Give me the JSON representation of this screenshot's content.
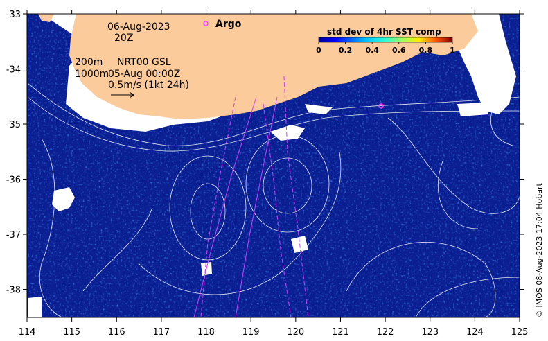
{
  "map": {
    "date": "06-Aug-2023",
    "time": "20Z",
    "depth_200": "200m",
    "depth_1000": "1000m",
    "product": "NRT00 GSL",
    "product_time": "05-Aug 00:00Z",
    "vector_scale": "0.5m/s (1kt 24h)",
    "argo_label": "Argo",
    "credit": "© IMOS 08-Aug-2023 17:04 Hobart",
    "x_ticks": [
      "114",
      "115",
      "116",
      "117",
      "118",
      "119",
      "120",
      "121",
      "122",
      "123",
      "124",
      "125"
    ],
    "y_ticks": [
      "-33",
      "-34",
      "-35",
      "-36",
      "-37",
      "-38"
    ],
    "land_color": "#fbcb9b",
    "ocean_color": "#0b1f93"
  },
  "colorbar": {
    "title": "std dev of 4hr SST comp",
    "ticks": [
      "0",
      "0.2",
      "0.4",
      "0.6",
      "0.8",
      "1"
    ]
  }
}
